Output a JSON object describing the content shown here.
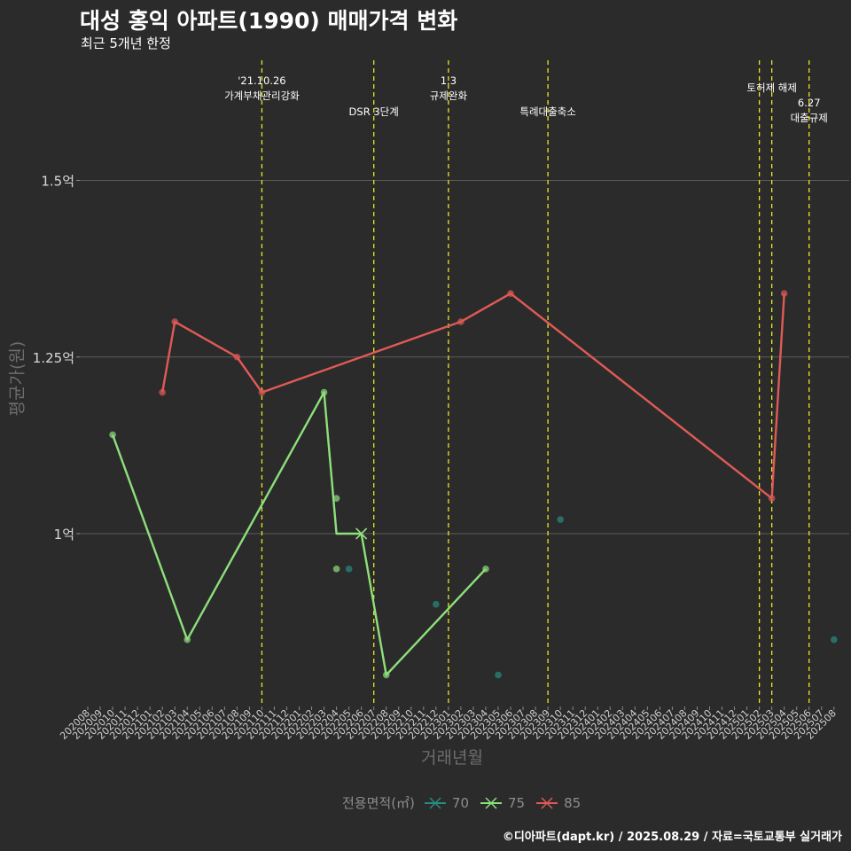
{
  "header": {
    "title": "대성 홍익 아파트(1990) 매매가격 변화",
    "subtitle": "최근 5개년 한정"
  },
  "caption": "©디아파트(dapt.kr) / 2025.08.29 / 자료=국토교통부 실거래가",
  "legend": {
    "title": "전용면적(㎡)",
    "items": [
      {
        "label": "70",
        "color": "#2a8b7d"
      },
      {
        "label": "75",
        "color": "#8ee07a"
      },
      {
        "label": "85",
        "color": "#e05a55"
      }
    ]
  },
  "chart_data": {
    "type": "line",
    "title": "대성 홍익 아파트(1990) 매매가격 변화",
    "subtitle": "최근 5개년 한정",
    "xlabel": "거래년월",
    "ylabel": "평균가(원)",
    "ylim": [
      0.8,
      1.55
    ],
    "y_ticks": [
      {
        "value": 1.0,
        "label": "1억"
      },
      {
        "value": 1.25,
        "label": "1.25억"
      },
      {
        "value": 1.5,
        "label": "1.5억"
      }
    ],
    "grid": true,
    "legend_position": "bottom",
    "categories": [
      "202008",
      "202009",
      "202010",
      "202011",
      "202012",
      "202101",
      "202102",
      "202103",
      "202104",
      "202105",
      "202106",
      "202107",
      "202108",
      "202109",
      "202110",
      "202111",
      "202112",
      "202201",
      "202202",
      "202203",
      "202204",
      "202205",
      "202206",
      "202207",
      "202208",
      "202209",
      "202210",
      "202211",
      "202212",
      "202301",
      "202302",
      "202303",
      "202304",
      "202305",
      "202306",
      "202307",
      "202308",
      "202309",
      "202310",
      "202311",
      "202312",
      "202401",
      "202402",
      "202403",
      "202404",
      "202405",
      "202406",
      "202407",
      "202408",
      "202409",
      "202410",
      "202411",
      "202412",
      "202501",
      "202502",
      "202503",
      "202504",
      "202505",
      "202506",
      "202507",
      "202508"
    ],
    "series": [
      {
        "name": "70",
        "color": "#2a8b7d",
        "lines": [],
        "points": [
          [
            "202205",
            0.95
          ],
          [
            "202212",
            0.9
          ],
          [
            "202305",
            0.8
          ],
          [
            "202310",
            1.02
          ],
          [
            "202508",
            0.85
          ]
        ]
      },
      {
        "name": "75",
        "color": "#8ee07a",
        "lines": [
          [
            [
              "202010",
              1.14
            ],
            [
              "202104",
              0.85
            ],
            [
              "202203",
              1.2
            ],
            [
              "202204",
              1.0
            ],
            [
              "202206",
              1.0
            ],
            [
              "202208",
              0.8
            ],
            [
              "202304",
              0.95
            ]
          ]
        ],
        "points": [
          [
            "202010",
            1.14
          ],
          [
            "202104",
            0.85
          ],
          [
            "202203",
            1.2
          ],
          [
            "202204",
            1.05
          ],
          [
            "202204",
            0.95
          ],
          [
            "202208",
            0.8
          ],
          [
            "202304",
            0.95
          ]
        ],
        "cross_points": [
          [
            "202206",
            1.0
          ]
        ]
      },
      {
        "name": "85",
        "color": "#e05a55",
        "lines": [
          [
            [
              "202102",
              1.2
            ],
            [
              "202103",
              1.3
            ],
            [
              "202108",
              1.25
            ],
            [
              "202110",
              1.2
            ],
            [
              "202302",
              1.3
            ],
            [
              "202306",
              1.34
            ],
            [
              "202503",
              1.05
            ]
          ],
          [
            [
              "202503",
              1.05
            ],
            [
              "202504",
              1.34
            ]
          ]
        ],
        "points": [
          [
            "202102",
            1.2
          ],
          [
            "202103",
            1.3
          ],
          [
            "202108",
            1.25
          ],
          [
            "202110",
            1.2
          ],
          [
            "202302",
            1.3
          ],
          [
            "202306",
            1.34
          ],
          [
            "202503",
            1.05
          ],
          [
            "202504",
            1.34
          ]
        ]
      }
    ],
    "events": [
      {
        "x": "202110",
        "lines": [
          "'21.10.26",
          "가계부채관리강화"
        ],
        "row": 0
      },
      {
        "x": "202207",
        "lines": [
          "DSR 3단계"
        ],
        "row": 1
      },
      {
        "x": "202301",
        "lines": [
          "1.3",
          "규제완화"
        ],
        "row": 0
      },
      {
        "x": "202309",
        "lines": [
          "특례대출축소"
        ],
        "row": 1
      },
      {
        "x": "202502",
        "lines": [],
        "row": 0
      },
      {
        "x": "202503",
        "lines": [
          "토허제 해제"
        ],
        "row": 0
      },
      {
        "x": "202506",
        "lines": [
          "6.27",
          "대출규제"
        ],
        "row": 1
      }
    ],
    "event_color": "#e8e81a"
  }
}
